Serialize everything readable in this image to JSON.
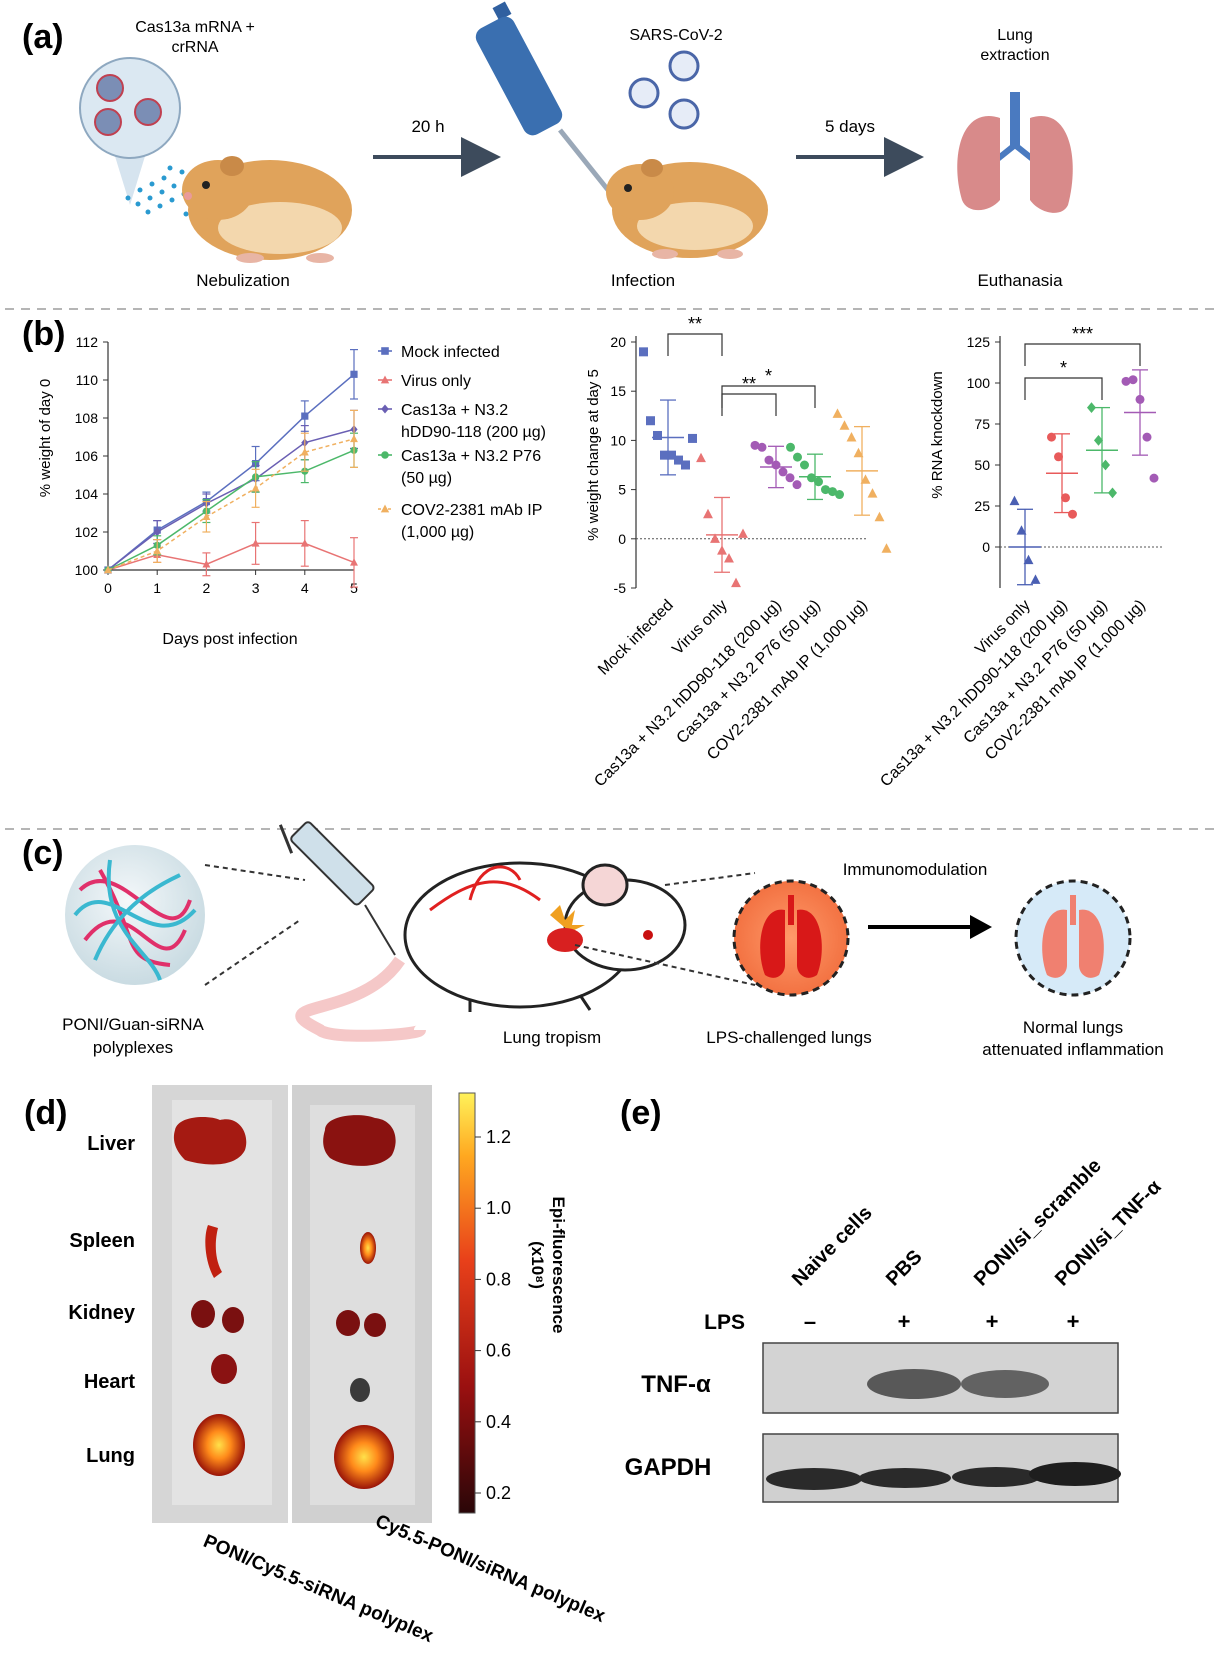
{
  "panel_a": {
    "label": "(a)",
    "mrna_line1": "Cas13a mRNA +",
    "mrna_line2": "crRNA",
    "arrow1_label": "20 h",
    "virus_label": "SARS-CoV-2",
    "arrow2_label": "5 days",
    "lung_line1": "Lung",
    "lung_line2": "extraction",
    "step1": "Nebulization",
    "step2": "Infection",
    "step3": "Euthanasia"
  },
  "panel_b": {
    "label": "(b)",
    "line_chart": {
      "type": "line",
      "xlabel": "Days post infection",
      "ylabel": "% weight of day 0",
      "x": [
        0,
        1,
        2,
        3,
        4,
        5
      ],
      "xlim": [
        0,
        5
      ],
      "ylim": [
        100,
        112
      ],
      "yticks": [
        100,
        102,
        104,
        106,
        108,
        110,
        112
      ],
      "series": [
        {
          "name": "Mock infected",
          "color": "#5b6fbf",
          "marker": "square",
          "values": [
            100,
            102.1,
            103.6,
            105.6,
            108.1,
            110.3
          ],
          "err": [
            0,
            0.5,
            0.5,
            0.9,
            0.8,
            1.3
          ]
        },
        {
          "name": "Virus only",
          "color": "#e87474",
          "marker": "triangle",
          "values": [
            100,
            100.8,
            100.3,
            101.4,
            101.4,
            100.4
          ],
          "err": [
            0,
            0.4,
            0.6,
            1.1,
            1.2,
            1.3
          ]
        },
        {
          "name": "Cas13a + N3.2 hDD90-118 (200 µg)",
          "name_line1": "Cas13a + N3.2",
          "name_line2": "hDD90-118 (200 µg)",
          "color": "#6a5fb3",
          "marker": "diamond",
          "values": [
            100,
            102.0,
            103.5,
            104.8,
            106.7,
            107.4
          ],
          "err": [
            0,
            0.6,
            0.5,
            0.7,
            0.9,
            1.0
          ]
        },
        {
          "name": "Cas13a + N3.2 P76 (50 µg)",
          "name_line1": "Cas13a + N3.2 P76",
          "name_line2": "(50 µg)",
          "color": "#4cb86a",
          "marker": "circle",
          "values": [
            100,
            101.3,
            103.1,
            104.9,
            105.2,
            106.3
          ],
          "err": [
            0,
            0.5,
            0.6,
            0.8,
            0.6,
            0.9
          ]
        },
        {
          "name": "COV2-2381 mAb IP (1,000 µg)",
          "name_line1": "COV2-2381 mAb IP",
          "name_line2": "(1,000 µg)",
          "color": "#f0b060",
          "marker": "triangle",
          "dashed": true,
          "values": [
            100,
            101.0,
            102.8,
            104.3,
            106.2,
            106.9
          ],
          "err": [
            0,
            0.6,
            0.8,
            1.0,
            1.0,
            1.5
          ]
        }
      ]
    },
    "weight_chart": {
      "type": "scatter",
      "ylabel": "% weight change at day 5",
      "ylim": [
        -5,
        20
      ],
      "yticks": [
        -5,
        0,
        5,
        10,
        15,
        20
      ],
      "categories": [
        "Mock infected",
        "Virus only",
        "Cas13a + N3.2 hDD90-118 (200 µg)",
        "Cas13a + N3.2 P76 (50 µg)",
        "COV2-2381 mAb IP (1,000 µg)"
      ],
      "groups": [
        {
          "color": "#5b6fbf",
          "marker": "square",
          "mean": 10.3,
          "sd": 3.8,
          "points": [
            19,
            12,
            10.5,
            8.5,
            8.5,
            8,
            7.5,
            10.2
          ]
        },
        {
          "color": "#e87474",
          "marker": "triangle",
          "mean": 0.4,
          "sd": 3.8,
          "points": [
            8.2,
            2.5,
            0,
            -1.2,
            -2,
            -4.5,
            0.5
          ]
        },
        {
          "color": "#a35bb5",
          "marker": "circle",
          "mean": 7.3,
          "sd": 2.1,
          "points": [
            9.5,
            9.3,
            8,
            7.5,
            6.8,
            6.2,
            5.5
          ]
        },
        {
          "color": "#4cb86a",
          "marker": "circle",
          "mean": 6.3,
          "sd": 2.3,
          "points": [
            9.3,
            8.3,
            7.5,
            6.2,
            5.8,
            5,
            4.8,
            4.5
          ]
        },
        {
          "color": "#f0b060",
          "marker": "triangle",
          "mean": 6.9,
          "sd": 4.5,
          "points": [
            12.7,
            11.5,
            10.3,
            8.7,
            6,
            4.6,
            2.2,
            -1
          ]
        }
      ],
      "significance": [
        {
          "from": 0,
          "to": 1,
          "label": "**"
        },
        {
          "from": 1,
          "to": 3,
          "label": "*"
        },
        {
          "from": 1,
          "to": 2,
          "label": "**"
        }
      ]
    },
    "rna_chart": {
      "type": "scatter",
      "ylabel": "% RNA knockdown",
      "ylim": [
        -25,
        125
      ],
      "yticks": [
        0,
        25,
        50,
        75,
        100,
        125
      ],
      "categories": [
        "Virus only",
        "Cas13a + N3.2 hDD90-118 (200 µg)",
        "Cas13a + N3.2 P76 (50 µg)",
        "COV2-2381 mAb IP (1,000 µg)"
      ],
      "groups": [
        {
          "color": "#4a5fb3",
          "marker": "triangle",
          "mean": 0,
          "sd": 23,
          "points": [
            28,
            10,
            -8,
            -20
          ]
        },
        {
          "color": "#e85a5a",
          "marker": "circle",
          "mean": 45,
          "sd": 24,
          "points": [
            67,
            55,
            30,
            20
          ]
        },
        {
          "color": "#4cb86a",
          "marker": "diamond",
          "mean": 59,
          "sd": 26,
          "points": [
            85,
            65,
            50,
            33
          ]
        },
        {
          "color": "#a35bb5",
          "marker": "circle",
          "mean": 82,
          "sd": 26,
          "points": [
            101,
            102,
            90,
            67,
            42
          ]
        }
      ],
      "significance": [
        {
          "from": 0,
          "to": 2,
          "label": "*"
        },
        {
          "from": 0,
          "to": 3,
          "label": "***"
        }
      ]
    }
  },
  "panel_c": {
    "label": "(c)",
    "poly_line1": "PONI/Guan-siRNA",
    "poly_line2": "polyplexes",
    "tropism": "Lung tropism",
    "lps": "LPS-challenged lungs",
    "immuno": "Immunomodulation",
    "normal_line1": "Normal lungs",
    "normal_line2": "attenuated inflammation"
  },
  "panel_d": {
    "label": "(d)",
    "organs": [
      "Liver",
      "Spleen",
      "Kidney",
      "Heart",
      "Lung"
    ],
    "colorbar_ticks": [
      "1.2",
      "1.0",
      "0.8",
      "0.6",
      "0.4",
      "0.2"
    ],
    "colorbar_title": "Epi-fluorescence",
    "colorbar_unit": "(x10⁸)",
    "column1": "PONI/Cy5.5-siRNA polyplex",
    "column2": "Cy5.5-PONI/siRNA polyplex"
  },
  "panel_e": {
    "label": "(e)",
    "lanes": [
      "Naive cells",
      "PBS",
      "PONI/si_scramble",
      "PONI/si_TNF-α"
    ],
    "lps_label": "LPS",
    "lps_values": [
      "–",
      "+",
      "+",
      "+"
    ],
    "tnf_label": "TNF-α",
    "gapdh_label": "GAPDH"
  }
}
